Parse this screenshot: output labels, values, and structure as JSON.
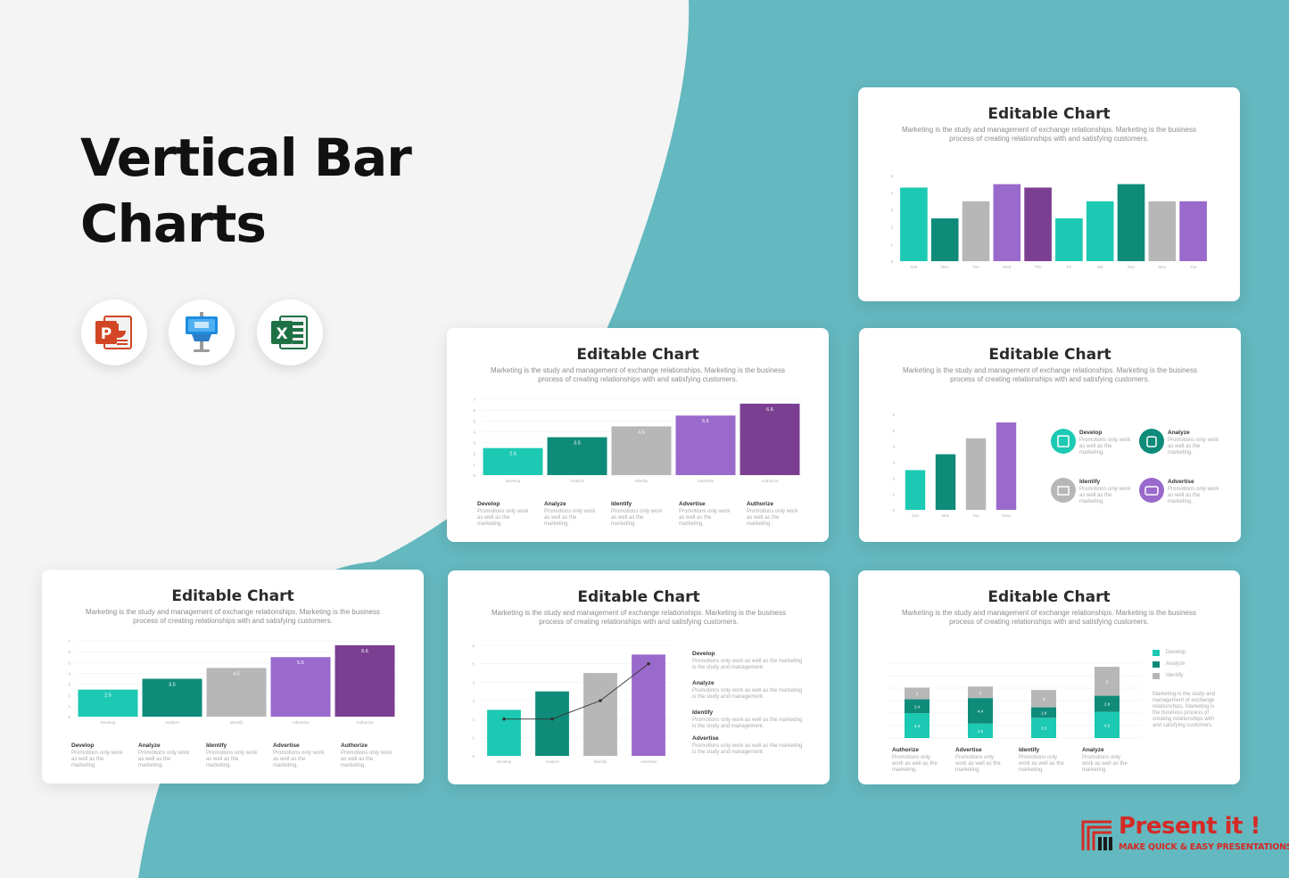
{
  "headline": {
    "line1": "Vertical Bar",
    "line2": "Charts"
  },
  "apps": [
    {
      "icon": "powerpoint-icon"
    },
    {
      "icon": "keynote-icon"
    },
    {
      "icon": "excel-icon"
    }
  ],
  "colors": {
    "teal_light": "#1cc9b3",
    "teal_dark": "#0f8b79",
    "gray": "#b7b7b7",
    "purple_light": "#9a69cc",
    "purple_dark": "#7b3f91",
    "background_teal": "#64b8bf",
    "brand_red": "#d42a26"
  },
  "cards": [
    {
      "title": "Editable Chart",
      "description": "Marketing is the study and management of exchange relationships. Marketing is the business process of creating relationships with and satisfying customers."
    },
    {
      "title": "Editable Chart",
      "description": "Marketing is the study and management of exchange relationships. Marketing is the business process of creating relationships with and satisfying customers."
    },
    {
      "title": "Editable Chart",
      "description": "Marketing is the study and management of exchange relationships. Marketing is the business process of creating relationships with and satisfying customers."
    },
    {
      "title": "Editable Chart",
      "description": "Marketing is the study and management of exchange relationships. Marketing is the business process of creating relationships with and satisfying customers."
    },
    {
      "title": "Editable Chart",
      "description": "Marketing is the study and management of exchange relationships. Marketing is the business process of creating relationships with and satisfying customers."
    },
    {
      "title": "Editable Chart",
      "description": "Marketing is the study and management of exchange relationships. Marketing is the business process of creating relationships with and satisfying customers."
    }
  ],
  "labels": {
    "develop": "Develop",
    "analyze": "Analyze",
    "identify": "Identify",
    "advertise": "Advertise",
    "authorize": "Authorize",
    "promo_short": "Promotions only work as well as the marketing.",
    "promo_long": "Promotions only work as well as the marketing is the study and management.",
    "side_text": "Marketing is the study and management of exchange relationships. Marketing is the business process of creating relationships with and satisfying customers."
  },
  "logo": {
    "word": "Present it !",
    "tagline": "MAKE QUICK & EASY PRESENTATIONS"
  },
  "chart_data": [
    {
      "type": "bar",
      "categories": [
        "Sun",
        "Mon",
        "Tue",
        "Wed",
        "Thu",
        "Fri",
        "Sat",
        "Sun",
        "Mon",
        "Tue"
      ],
      "values": [
        4.3,
        2.5,
        3.5,
        4.5,
        4.3,
        2.5,
        3.5,
        4.5,
        3.5,
        3.5
      ],
      "ylim": [
        0,
        5
      ]
    },
    {
      "type": "bar",
      "categories": [
        "Develop",
        "Analyze",
        "Identify",
        "Advertise",
        "Authorize"
      ],
      "values": [
        2.5,
        3.5,
        4.5,
        5.5,
        6.6
      ],
      "ylim": [
        0,
        7
      ]
    },
    {
      "type": "bar",
      "categories": [
        "Sun",
        "Mon",
        "Tue",
        "Wed"
      ],
      "values": [
        2.5,
        3.5,
        4.5,
        5.5
      ],
      "ylim": [
        0,
        6
      ]
    },
    {
      "type": "bar",
      "categories": [
        "Develop",
        "Analyze",
        "Identify",
        "Advertise",
        "Authorize"
      ],
      "values": [
        2.5,
        3.5,
        4.5,
        5.5,
        6.6
      ],
      "ylim": [
        0,
        7
      ]
    },
    {
      "type": "bar",
      "categories": [
        "Develop",
        "Analyze",
        "Identify",
        "Advertise"
      ],
      "values": [
        2.5,
        3.5,
        4.5,
        5.5
      ],
      "line": [
        2,
        2,
        3,
        5
      ],
      "ylim": [
        0,
        6
      ]
    },
    {
      "type": "bar",
      "stacked": true,
      "categories": [
        "Authorize",
        "Advertise",
        "Identify",
        "Analyze"
      ],
      "series": [
        {
          "name": "Develop",
          "values": [
            4.3,
            2.5,
            3.5,
            4.5
          ]
        },
        {
          "name": "Analyze",
          "values": [
            2.4,
            4.4,
            1.8,
            2.8
          ]
        },
        {
          "name": "Identify",
          "values": [
            2,
            2,
            3,
            5
          ]
        }
      ]
    }
  ]
}
